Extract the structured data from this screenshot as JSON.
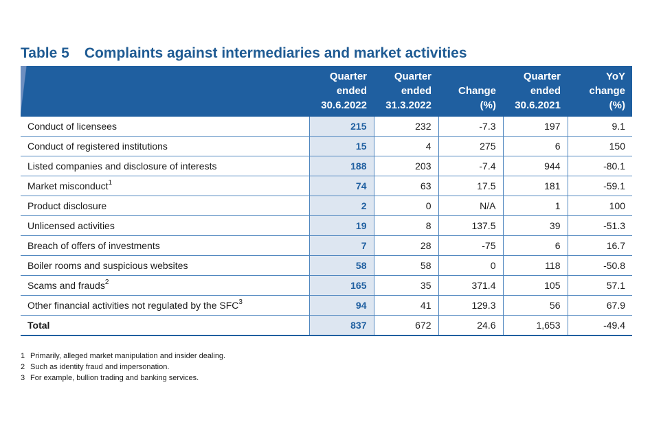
{
  "title": {
    "number": "Table 5",
    "text": "Complaints against intermediaries and market activities"
  },
  "columns": [
    [
      "Quarter",
      "ended",
      "30.6.2022"
    ],
    [
      "Quarter",
      "ended",
      "31.3.2022"
    ],
    [
      "Change",
      "(%)"
    ],
    [
      "Quarter",
      "ended",
      "30.6.2021"
    ],
    [
      "YoY",
      "change",
      "(%)"
    ]
  ],
  "rows": [
    {
      "label": "Conduct of licensees",
      "note": "",
      "values": [
        "215",
        "232",
        "-7.3",
        "197",
        "9.1"
      ]
    },
    {
      "label": "Conduct of registered institutions",
      "note": "",
      "values": [
        "15",
        "4",
        "275",
        "6",
        "150"
      ]
    },
    {
      "label": "Listed companies and disclosure of interests",
      "note": "",
      "values": [
        "188",
        "203",
        "-7.4",
        "944",
        "-80.1"
      ]
    },
    {
      "label": "Market misconduct",
      "note": "1",
      "values": [
        "74",
        "63",
        "17.5",
        "181",
        "-59.1"
      ]
    },
    {
      "label": "Product disclosure",
      "note": "",
      "values": [
        "2",
        "0",
        "N/A",
        "1",
        "100"
      ]
    },
    {
      "label": "Unlicensed activities",
      "note": "",
      "values": [
        "19",
        "8",
        "137.5",
        "39",
        "-51.3"
      ]
    },
    {
      "label": "Breach of offers of investments",
      "note": "",
      "values": [
        "7",
        "28",
        "-75",
        "6",
        "16.7"
      ]
    },
    {
      "label": "Boiler rooms and suspicious websites",
      "note": "",
      "values": [
        "58",
        "58",
        "0",
        "118",
        "-50.8"
      ]
    },
    {
      "label": "Scams and frauds",
      "note": "2",
      "values": [
        "165",
        "35",
        "371.4",
        "105",
        "57.1"
      ]
    },
    {
      "label": "Other financial activities not regulated by the SFC",
      "note": "3",
      "values": [
        "94",
        "41",
        "129.3",
        "56",
        "67.9"
      ]
    }
  ],
  "total": {
    "label": "Total",
    "values": [
      "837",
      "672",
      "24.6",
      "1,653",
      "-49.4"
    ]
  },
  "footnotes": [
    {
      "num": "1",
      "text": "Primarily, alleged market manipulation and insider dealing."
    },
    {
      "num": "2",
      "text": "Such as identity fraud and impersonation."
    },
    {
      "num": "3",
      "text": "For example, bullion trading and banking services."
    }
  ],
  "colors": {
    "header_bg": "#1f5fa0",
    "title": "#1f5b93",
    "highlight_bg": "#dde6f1"
  }
}
